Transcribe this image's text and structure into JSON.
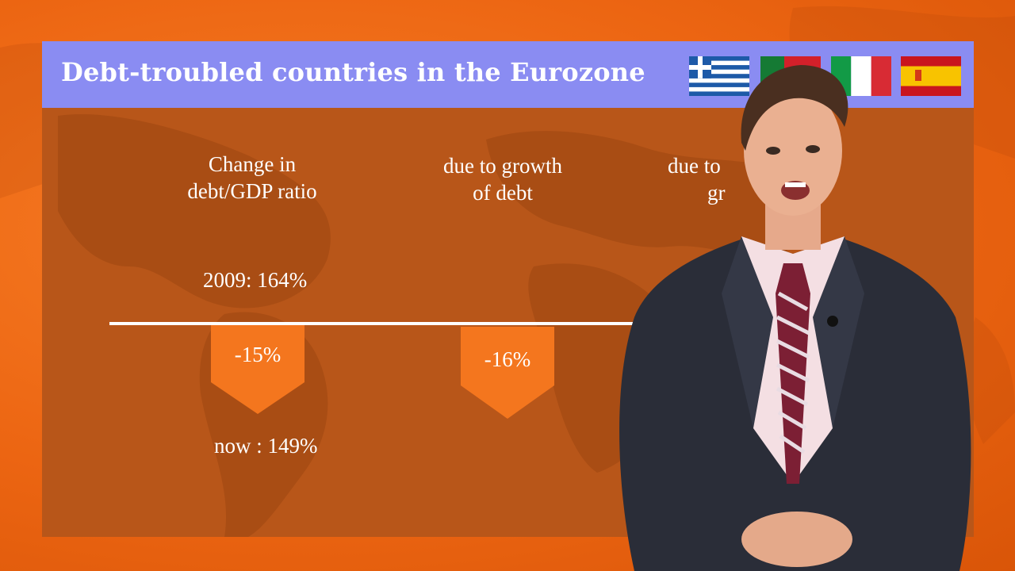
{
  "title": "Debt-troubled countries in the Eurozone",
  "flags": [
    "greece-flag",
    "portugal-flag",
    "italy-flag",
    "spain-flag"
  ],
  "columns": [
    {
      "label_line1": "Change in",
      "label_line2": "debt/GDP ratio"
    },
    {
      "label_line1": "due to growth",
      "label_line2": "of debt"
    },
    {
      "label_line1": "due to",
      "label_line2": "gr"
    }
  ],
  "stats": {
    "year_2009": "2009:  164%",
    "now": "now :  149%"
  },
  "changes": [
    "-15%",
    "-16%"
  ],
  "colors": {
    "background": "#ef6a17",
    "panel": "#b85619",
    "header": "#8a8cf2",
    "arrow": "#f4761e"
  }
}
